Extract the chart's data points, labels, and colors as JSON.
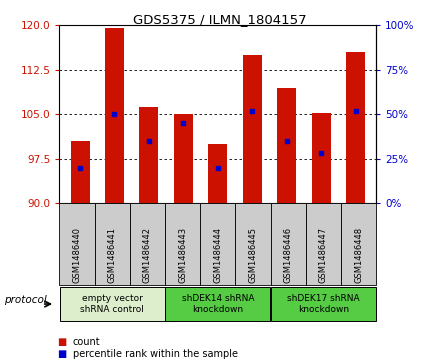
{
  "title": "GDS5375 / ILMN_1804157",
  "samples": [
    "GSM1486440",
    "GSM1486441",
    "GSM1486442",
    "GSM1486443",
    "GSM1486444",
    "GSM1486445",
    "GSM1486446",
    "GSM1486447",
    "GSM1486448"
  ],
  "count_values": [
    100.5,
    119.5,
    106.2,
    105.1,
    100.0,
    115.0,
    109.5,
    105.3,
    115.5
  ],
  "percentile_values": [
    20,
    50,
    35,
    45,
    20,
    52,
    35,
    28,
    52
  ],
  "ylim_left": [
    90,
    120
  ],
  "ylim_right": [
    0,
    100
  ],
  "yticks_left": [
    90,
    97.5,
    105,
    112.5,
    120
  ],
  "yticks_right": [
    0,
    25,
    50,
    75,
    100
  ],
  "bar_color": "#cc1100",
  "dot_color": "#0000cc",
  "bar_width": 0.55,
  "groups": [
    {
      "label": "empty vector\nshRNA control",
      "start": 0,
      "end": 3,
      "color": "#ddeecc"
    },
    {
      "label": "shDEK14 shRNA\nknockdown",
      "start": 3,
      "end": 6,
      "color": "#55cc44"
    },
    {
      "label": "shDEK17 shRNA\nknockdown",
      "start": 6,
      "end": 9,
      "color": "#55cc44"
    }
  ],
  "sample_box_color": "#cccccc",
  "legend_count_label": "count",
  "legend_percentile_label": "percentile rank within the sample",
  "protocol_label": "protocol",
  "tick_color_left": "#cc1100",
  "tick_color_right": "#0000cc",
  "figure_bg": "#ffffff"
}
